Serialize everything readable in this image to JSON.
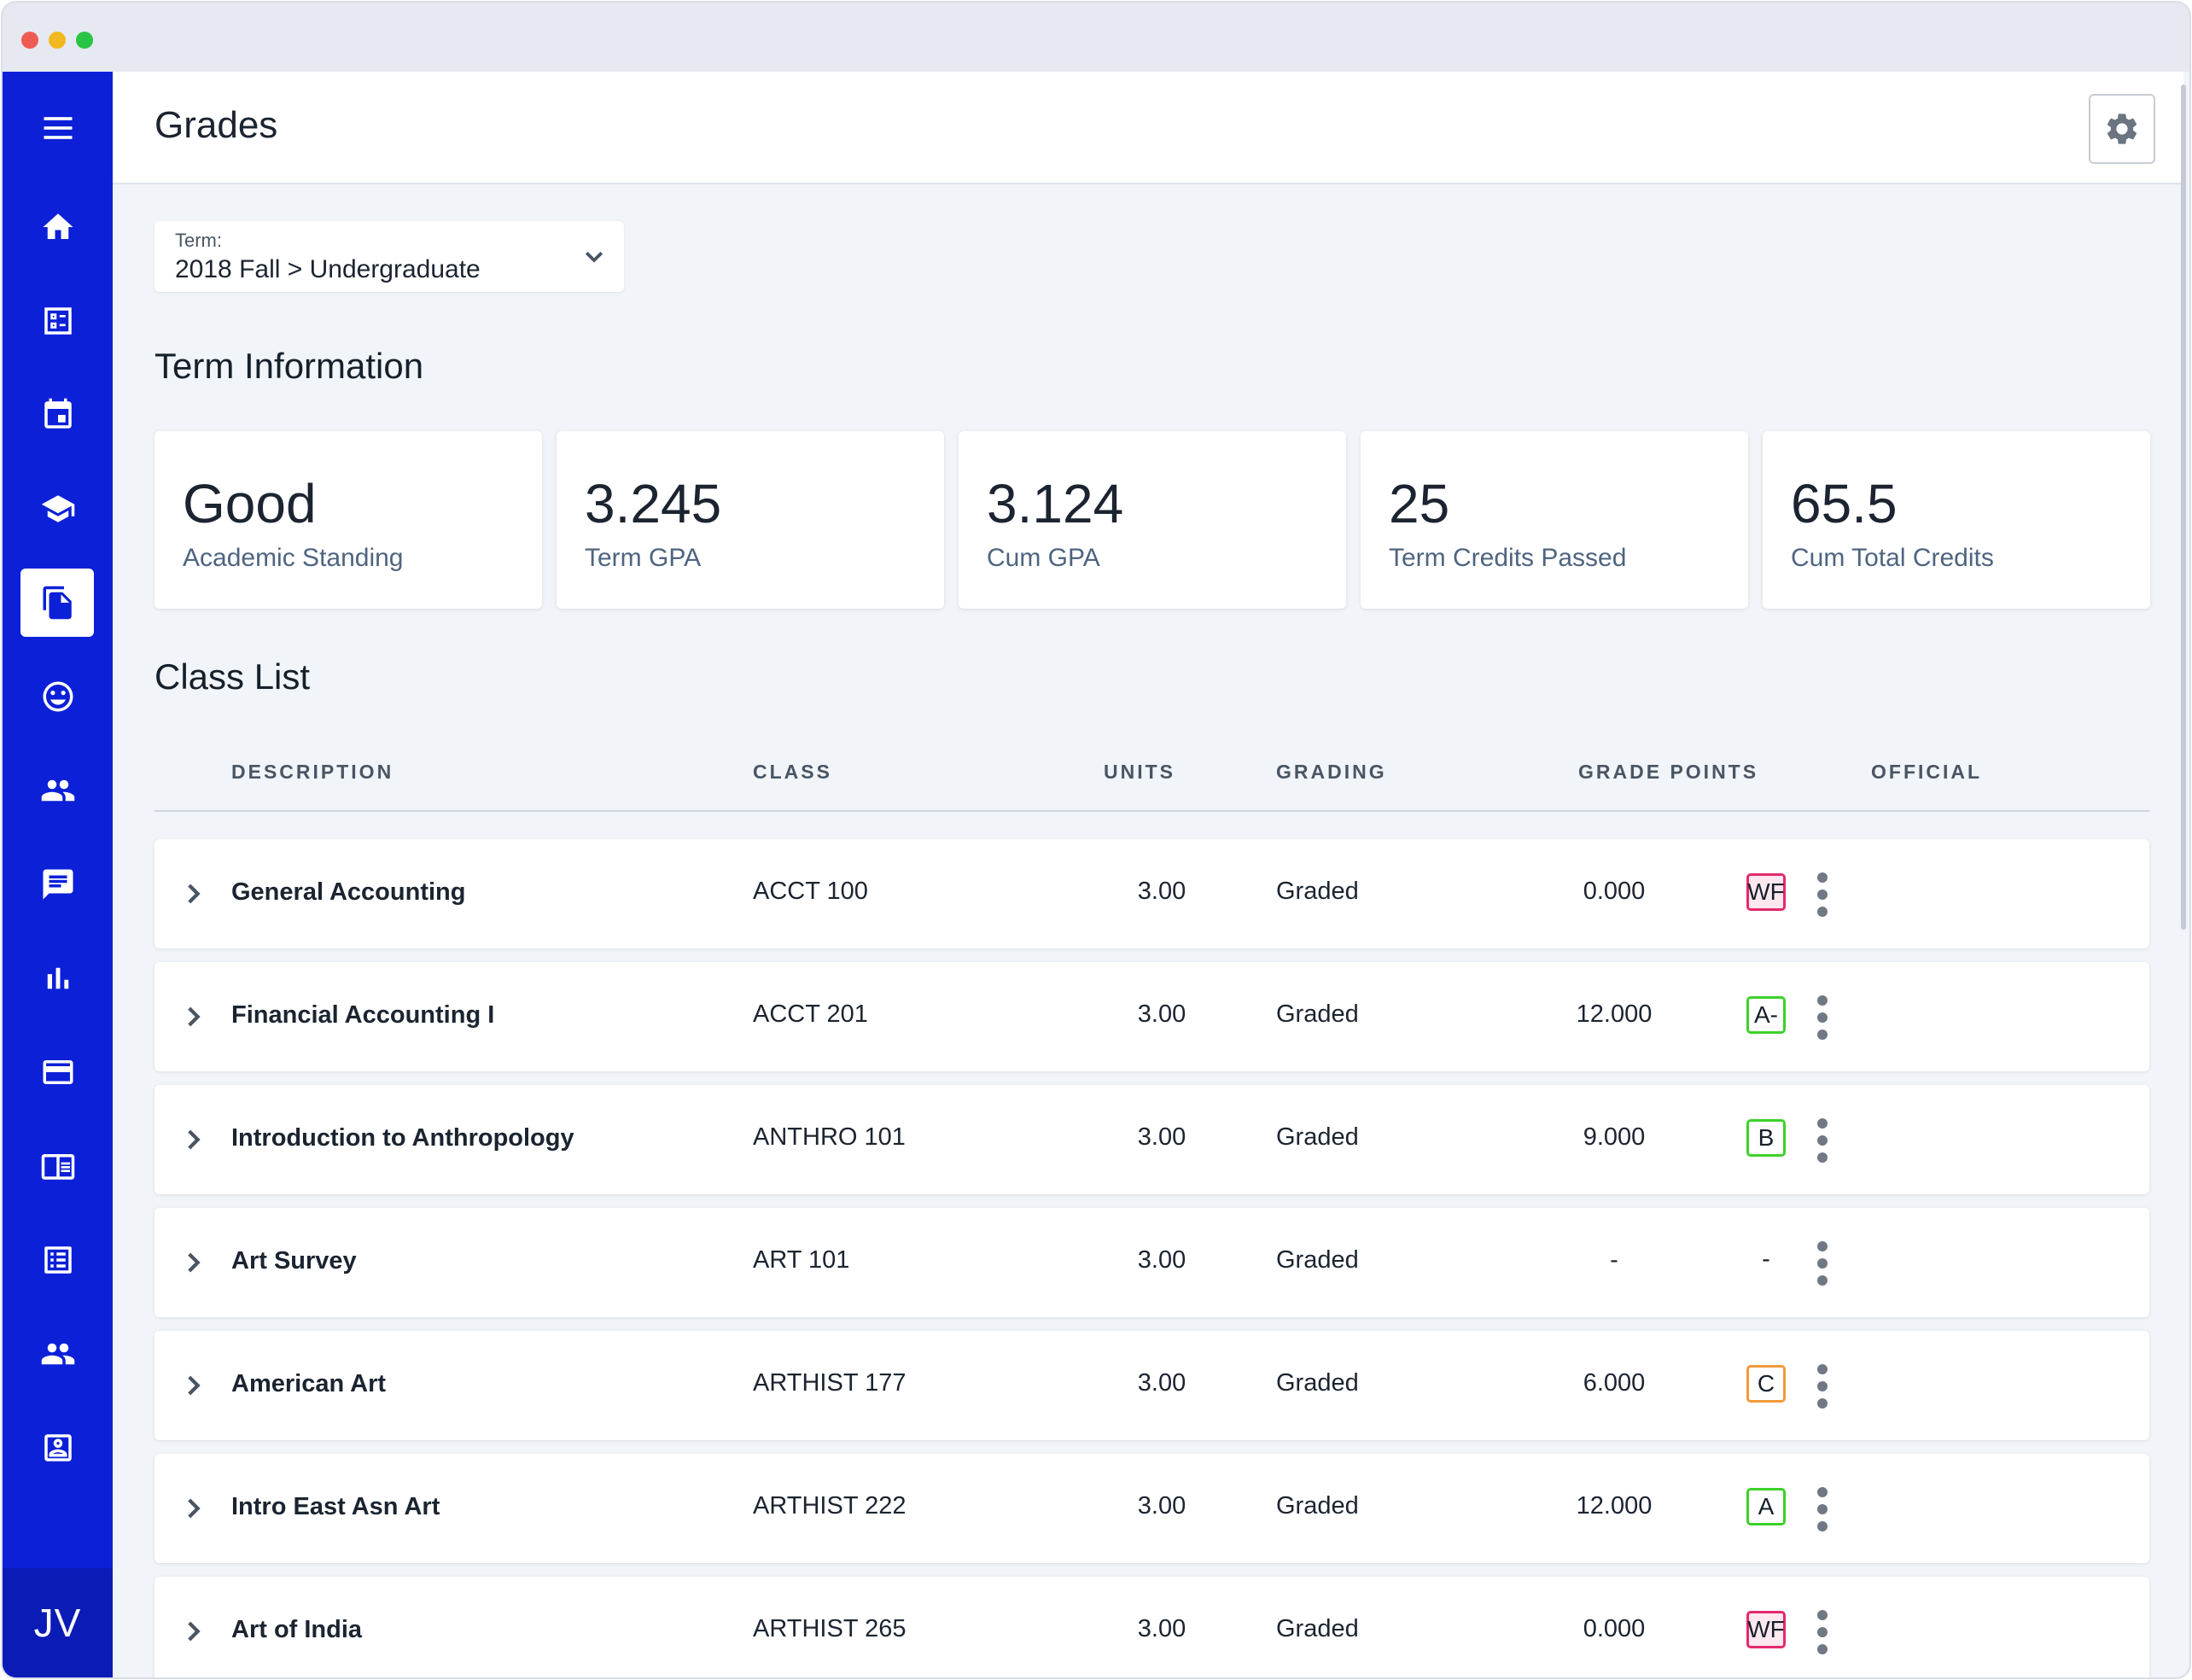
{
  "window": {
    "title_dots": [
      "close",
      "minimize",
      "maximize"
    ]
  },
  "sidebar": {
    "items": [
      {
        "icon": "menu-icon"
      },
      {
        "icon": "home-icon"
      },
      {
        "icon": "dashboard-icon"
      },
      {
        "icon": "calendar-icon"
      },
      {
        "icon": "graduation-cap-icon"
      },
      {
        "icon": "documents-icon",
        "active": true
      },
      {
        "icon": "smiley-icon"
      },
      {
        "icon": "people-icon"
      },
      {
        "icon": "chat-icon"
      },
      {
        "icon": "bar-chart-icon"
      },
      {
        "icon": "credit-card-icon"
      },
      {
        "icon": "newspaper-icon"
      },
      {
        "icon": "list-icon"
      },
      {
        "icon": "group-icon"
      },
      {
        "icon": "contact-card-icon"
      }
    ],
    "avatar_initials": "JV"
  },
  "header": {
    "title": "Grades",
    "settings_icon": "gear-icon"
  },
  "term": {
    "label": "Term:",
    "value": "2018 Fall > Undergraduate"
  },
  "term_info": {
    "title": "Term Information",
    "stats": [
      {
        "value": "Good",
        "label": "Academic Standing"
      },
      {
        "value": "3.245",
        "label": "Term GPA"
      },
      {
        "value": "3.124",
        "label": "Cum GPA"
      },
      {
        "value": "25",
        "label": "Term Credits Passed"
      },
      {
        "value": "65.5",
        "label": "Cum Total Credits"
      }
    ]
  },
  "class_list": {
    "title": "Class List",
    "columns": {
      "description": "DESCRIPTION",
      "class": "CLASS",
      "units": "UNITS",
      "grading": "GRADING",
      "grade_points": "GRADE POINTS",
      "official": "OFFICIAL"
    },
    "rows": [
      {
        "description": "General Accounting",
        "class": "ACCT 100",
        "units": "3.00",
        "grading": "Graded",
        "grade_points": "0.000",
        "official": "WF",
        "badge_color": "#e4286e",
        "badge_bg": "#fde8ef"
      },
      {
        "description": "Financial Accounting I",
        "class": "ACCT 201",
        "units": "3.00",
        "grading": "Graded",
        "grade_points": "12.000",
        "official": "A-",
        "badge_color": "#3dd12a",
        "badge_bg": "#ffffff"
      },
      {
        "description": "Introduction to Anthropology",
        "class": "ANTHRO 101",
        "units": "3.00",
        "grading": "Graded",
        "grade_points": "9.000",
        "official": "B",
        "badge_color": "#3dd12a",
        "badge_bg": "#ffffff"
      },
      {
        "description": "Art Survey",
        "class": "ART 101",
        "units": "3.00",
        "grading": "Graded",
        "grade_points": "-",
        "official": "-",
        "badge_color": "",
        "badge_bg": ""
      },
      {
        "description": "American Art",
        "class": "ARTHIST 177",
        "units": "3.00",
        "grading": "Graded",
        "grade_points": "6.000",
        "official": "C",
        "badge_color": "#f39a3a",
        "badge_bg": "#ffffff"
      },
      {
        "description": "Intro East Asn Art",
        "class": "ARTHIST 222",
        "units": "3.00",
        "grading": "Graded",
        "grade_points": "12.000",
        "official": "A",
        "badge_color": "#3dd12a",
        "badge_bg": "#ffffff"
      },
      {
        "description": "Art of India",
        "class": "ARTHIST 265",
        "units": "3.00",
        "grading": "Graded",
        "grade_points": "0.000",
        "official": "WF",
        "badge_color": "#e4286e",
        "badge_bg": "#fde8ef"
      }
    ]
  },
  "colors": {
    "sidebar": "#0c20d8",
    "background": "#f1f4f8",
    "accent_green": "#3dd12a",
    "accent_pink": "#e4286e",
    "accent_orange": "#f39a3a"
  }
}
